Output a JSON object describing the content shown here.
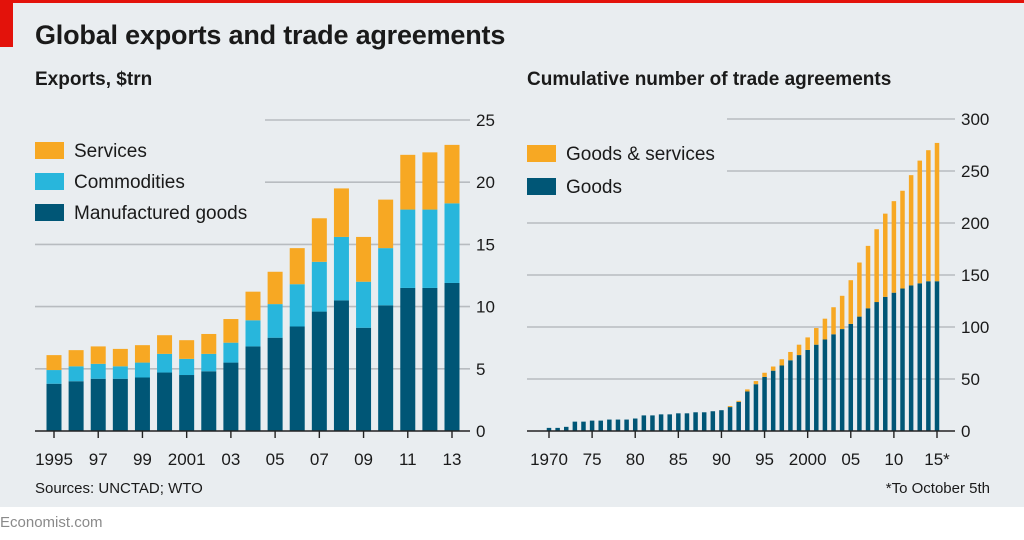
{
  "header": {
    "title": "Global exports and trade agreements"
  },
  "footer": {
    "sources": "Sources: UNCTAD; WTO",
    "footnote": "*To October 5th",
    "brand": "Economist.com"
  },
  "colors": {
    "services": "#f7a823",
    "commodities": "#28b6dc",
    "manufactured": "#005676",
    "goods_services": "#f7a823",
    "goods": "#005676",
    "gridline": "#b8bcc0",
    "axis": "#222222",
    "accent": "#e3120b"
  },
  "chart_data": [
    {
      "type": "bar",
      "stacked": true,
      "title": "Exports, $trn",
      "categories": [
        "1995",
        "1996",
        "1997",
        "1998",
        "1999",
        "2000",
        "2001",
        "2002",
        "2003",
        "2004",
        "2005",
        "2006",
        "2007",
        "2008",
        "2009",
        "2010",
        "2011",
        "2012",
        "2013"
      ],
      "tick_labels": [
        "1995",
        "97",
        "99",
        "2001",
        "03",
        "05",
        "07",
        "09",
        "11",
        "13"
      ],
      "tick_categories": [
        "1995",
        "1997",
        "1999",
        "2001",
        "2003",
        "2005",
        "2007",
        "2009",
        "2011",
        "2013"
      ],
      "y_ticks": [
        "0",
        "5",
        "10",
        "15",
        "20",
        "25"
      ],
      "ylim": [
        0,
        25
      ],
      "legend_position": "top-left",
      "series": [
        {
          "name": "Manufactured goods",
          "values": [
            3.8,
            4.0,
            4.2,
            4.2,
            4.3,
            4.7,
            4.5,
            4.8,
            5.5,
            6.8,
            7.5,
            8.4,
            9.6,
            10.5,
            8.3,
            10.1,
            11.5,
            11.5,
            11.9
          ]
        },
        {
          "name": "Commodities",
          "values": [
            1.1,
            1.2,
            1.2,
            1.0,
            1.2,
            1.5,
            1.3,
            1.4,
            1.6,
            2.1,
            2.7,
            3.4,
            4.0,
            5.1,
            3.7,
            4.6,
            6.3,
            6.3,
            6.4
          ]
        },
        {
          "name": "Services",
          "values": [
            1.2,
            1.3,
            1.4,
            1.4,
            1.4,
            1.5,
            1.5,
            1.6,
            1.9,
            2.3,
            2.6,
            2.9,
            3.5,
            3.9,
            3.6,
            3.9,
            4.4,
            4.6,
            4.7
          ]
        }
      ]
    },
    {
      "type": "bar",
      "stacked": true,
      "title": "Cumulative number of trade agreements",
      "categories": [
        "1970",
        "1971",
        "1972",
        "1973",
        "1974",
        "1975",
        "1976",
        "1977",
        "1978",
        "1979",
        "1980",
        "1981",
        "1982",
        "1983",
        "1984",
        "1985",
        "1986",
        "1987",
        "1988",
        "1989",
        "1990",
        "1991",
        "1992",
        "1993",
        "1994",
        "1995",
        "1996",
        "1997",
        "1998",
        "1999",
        "2000",
        "2001",
        "2002",
        "2003",
        "2004",
        "2005",
        "2006",
        "2007",
        "2008",
        "2009",
        "2010",
        "2011",
        "2012",
        "2013",
        "2014",
        "2015"
      ],
      "tick_labels": [
        "1970",
        "75",
        "80",
        "85",
        "90",
        "95",
        "2000",
        "05",
        "10",
        "15*"
      ],
      "tick_categories": [
        "1970",
        "1975",
        "1980",
        "1985",
        "1990",
        "1995",
        "2000",
        "2005",
        "2010",
        "2015"
      ],
      "y_ticks": [
        "0",
        "50",
        "100",
        "150",
        "200",
        "250",
        "300"
      ],
      "ylim": [
        0,
        300
      ],
      "legend_position": "top-left",
      "series": [
        {
          "name": "Goods",
          "values": [
            3,
            3,
            4,
            9,
            9,
            10,
            10,
            11,
            11,
            11,
            12,
            15,
            15,
            16,
            16,
            17,
            17,
            18,
            18,
            19,
            20,
            23,
            28,
            38,
            45,
            52,
            58,
            63,
            68,
            73,
            78,
            83,
            88,
            93,
            98,
            103,
            110,
            118,
            124,
            129,
            133,
            137,
            140,
            142,
            144,
            144
          ]
        },
        {
          "name": "Goods & services",
          "values": [
            0,
            0,
            0,
            0,
            0,
            0,
            0,
            0,
            0,
            0,
            0,
            0,
            0,
            0,
            0,
            0,
            0,
            0,
            0,
            0,
            0,
            1,
            1,
            2,
            3,
            4,
            4,
            6,
            8,
            10,
            12,
            16,
            20,
            26,
            32,
            42,
            52,
            60,
            70,
            80,
            88,
            94,
            106,
            118,
            126,
            133
          ]
        }
      ]
    }
  ]
}
